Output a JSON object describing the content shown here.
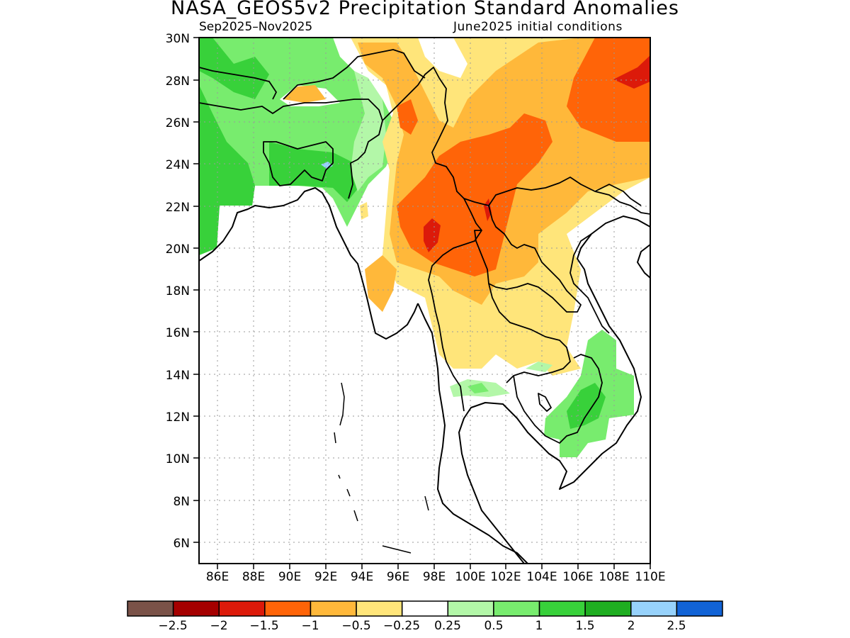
{
  "title": "NASA_GEOS5v2 Precipitation Standard Anomalies",
  "period": "Sep2025–Nov2025",
  "initial_conditions": "June2025 initial conditions",
  "latitude_labels": [
    "30N",
    "28N",
    "26N",
    "24N",
    "22N",
    "20N",
    "18N",
    "16N",
    "14N",
    "12N",
    "10N",
    "8N",
    "6N"
  ],
  "longitude_labels": [
    "86E",
    "88E",
    "90E",
    "92E",
    "94E",
    "96E",
    "98E",
    "100E",
    "102E",
    "104E",
    "106E",
    "108E",
    "110E"
  ],
  "legend": {
    "labels": [
      "−2.5",
      "−2",
      "−1.5",
      "−1",
      "−0.5",
      "−0.25",
      "0.25",
      "0.5",
      "1",
      "1.5",
      "2",
      "2.5"
    ],
    "colors": [
      "#7a5248",
      "#a50000",
      "#dc1a0a",
      "#ff6408",
      "#ffb83a",
      "#ffe57a",
      "#ffffff",
      "#b3f7a8",
      "#78ec6e",
      "#38d13a",
      "#1fae21",
      "#97d2fb",
      "#1263d6"
    ]
  },
  "colors": {
    "dark_red": "#dc1a0a",
    "red_orange": "#ff6408",
    "orange": "#ffb83a",
    "light_yellow": "#ffe57a",
    "light_green": "#b3f7a8",
    "green": "#78ec6e",
    "medium_green": "#38d13a",
    "light_blue": "#97d2fb"
  }
}
